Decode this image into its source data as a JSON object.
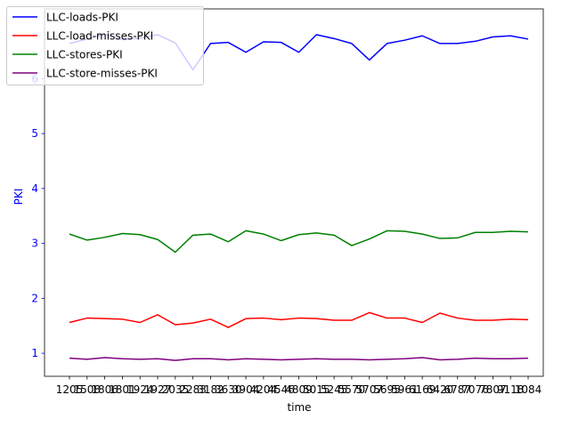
{
  "chart_data": {
    "type": "line",
    "title": "",
    "xlabel": "time",
    "ylabel": "PKI",
    "ylabel_color": "#0000ff",
    "ytick_color": "#0000ff",
    "ylim": [
      0.58,
      7.27
    ],
    "yticks": [
      1,
      2,
      3,
      4,
      5,
      6
    ],
    "x": [
      "1205",
      "1508",
      "1806",
      "1801",
      "1924",
      "1927",
      "2035",
      "2283",
      "3182",
      "3630",
      "3904",
      "4204",
      "4546",
      "4809",
      "5015",
      "5245",
      "5570",
      "5707",
      "5695",
      "5961",
      "6169",
      "6420",
      "6787",
      "7076",
      "7807",
      "9118",
      "1084"
    ],
    "grid": false,
    "legend_position": "upper-left",
    "series": [
      {
        "name": "LLC-loads-PKI",
        "color": "#0000ff",
        "values": [
          6.64,
          6.72,
          6.81,
          6.71,
          6.74,
          6.8,
          6.65,
          6.16,
          6.64,
          6.66,
          6.48,
          6.67,
          6.66,
          6.48,
          6.8,
          6.73,
          6.64,
          6.34,
          6.64,
          6.7,
          6.78,
          6.64,
          6.64,
          6.68,
          6.76,
          6.78,
          6.72
        ]
      },
      {
        "name": "LLC-load-misses-PKI",
        "color": "#ff0000",
        "values": [
          1.56,
          1.64,
          1.63,
          1.62,
          1.56,
          1.7,
          1.52,
          1.55,
          1.62,
          1.47,
          1.63,
          1.64,
          1.61,
          1.64,
          1.63,
          1.6,
          1.6,
          1.74,
          1.64,
          1.64,
          1.56,
          1.73,
          1.64,
          1.6,
          1.6,
          1.62,
          1.61
        ]
      },
      {
        "name": "LLC-stores-PKI",
        "color": "#008000",
        "values": [
          3.17,
          3.06,
          3.11,
          3.18,
          3.16,
          3.07,
          2.84,
          3.15,
          3.17,
          3.03,
          3.23,
          3.17,
          3.05,
          3.16,
          3.19,
          3.15,
          2.96,
          3.08,
          3.23,
          3.22,
          3.17,
          3.09,
          3.1,
          3.2,
          3.2,
          3.22,
          3.21
        ]
      },
      {
        "name": "LLC-store-misses-PKI",
        "color": "#800080",
        "values": [
          0.91,
          0.89,
          0.92,
          0.9,
          0.89,
          0.9,
          0.87,
          0.9,
          0.9,
          0.88,
          0.9,
          0.89,
          0.88,
          0.89,
          0.9,
          0.89,
          0.89,
          0.88,
          0.89,
          0.9,
          0.92,
          0.88,
          0.89,
          0.91,
          0.9,
          0.9,
          0.91
        ]
      }
    ]
  }
}
